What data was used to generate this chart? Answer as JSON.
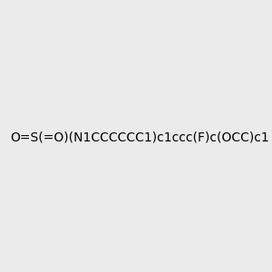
{
  "smiles": "O=S(=O)(N1CCCCCC1)c1ccc(F)c(OCC)c1",
  "image_size": 300,
  "background_color": "#ebebeb",
  "bond_color": "#3d7a6e",
  "atom_colors": {
    "N": "#0000ff",
    "O": "#ff0000",
    "S": "#ccaa00",
    "F": "#cc44aa"
  }
}
